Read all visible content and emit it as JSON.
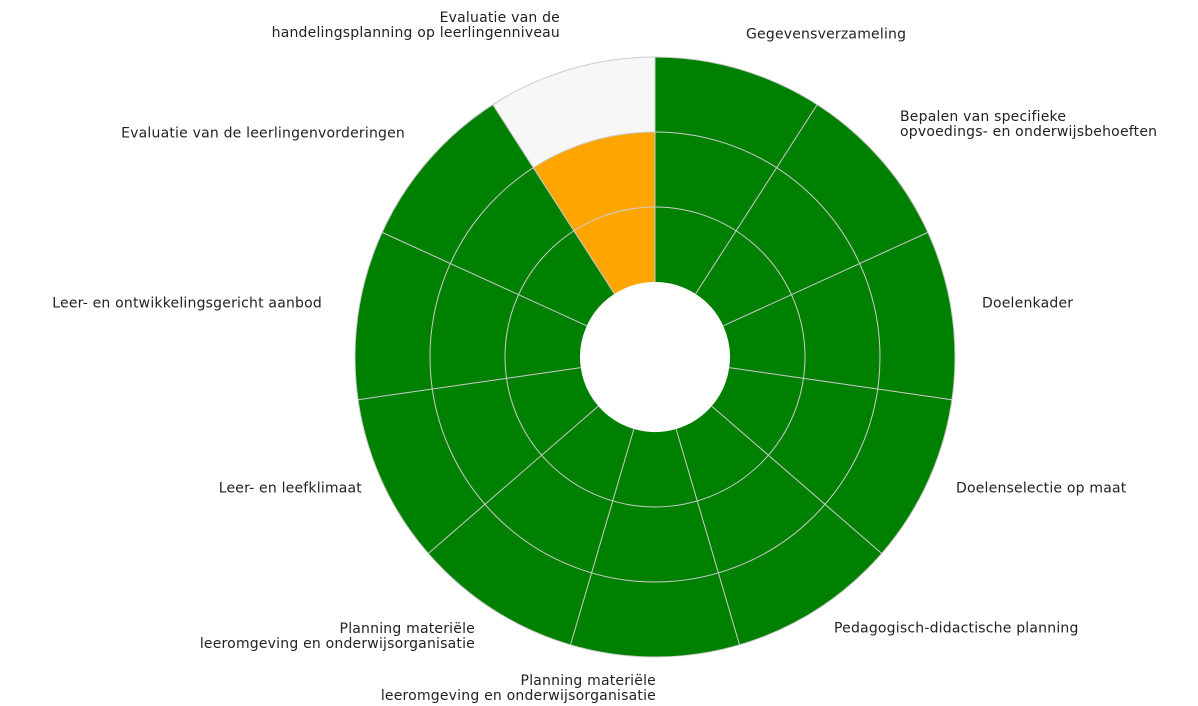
{
  "chart_data": {
    "type": "polar_bar",
    "categories": [
      "Gegevensverzameling",
      "Bepalen van specifieke\nopvoedings- en onderwijsbehoeften",
      "Doelenkader",
      "Doelenselectie op maat",
      "Pedagogisch-didactische planning",
      "Planning materiële\nleeromgeving en onderwijsorganisatie",
      "Planning materiële\nleeromgeving en onderwijsorganisatie",
      "Leer- en leefklimaat",
      "Leer- en ontwikkelingsgericht aanbod",
      "Evaluatie van de leerlingenvorderingen",
      "Evaluatie van de\nhandelingsplanning op leerlingenniveau"
    ],
    "values": [
      3,
      3,
      3,
      3,
      3,
      3,
      3,
      3,
      3,
      3,
      2
    ],
    "colors": [
      "#008000",
      "#008000",
      "#008000",
      "#008000",
      "#008000",
      "#008000",
      "#008000",
      "#008000",
      "#008000",
      "#008000",
      "#ffa500"
    ],
    "background_color": "#f7f7f7",
    "rlim": [
      0,
      3
    ],
    "rticks": [
      1,
      2,
      3
    ],
    "grid": true
  }
}
